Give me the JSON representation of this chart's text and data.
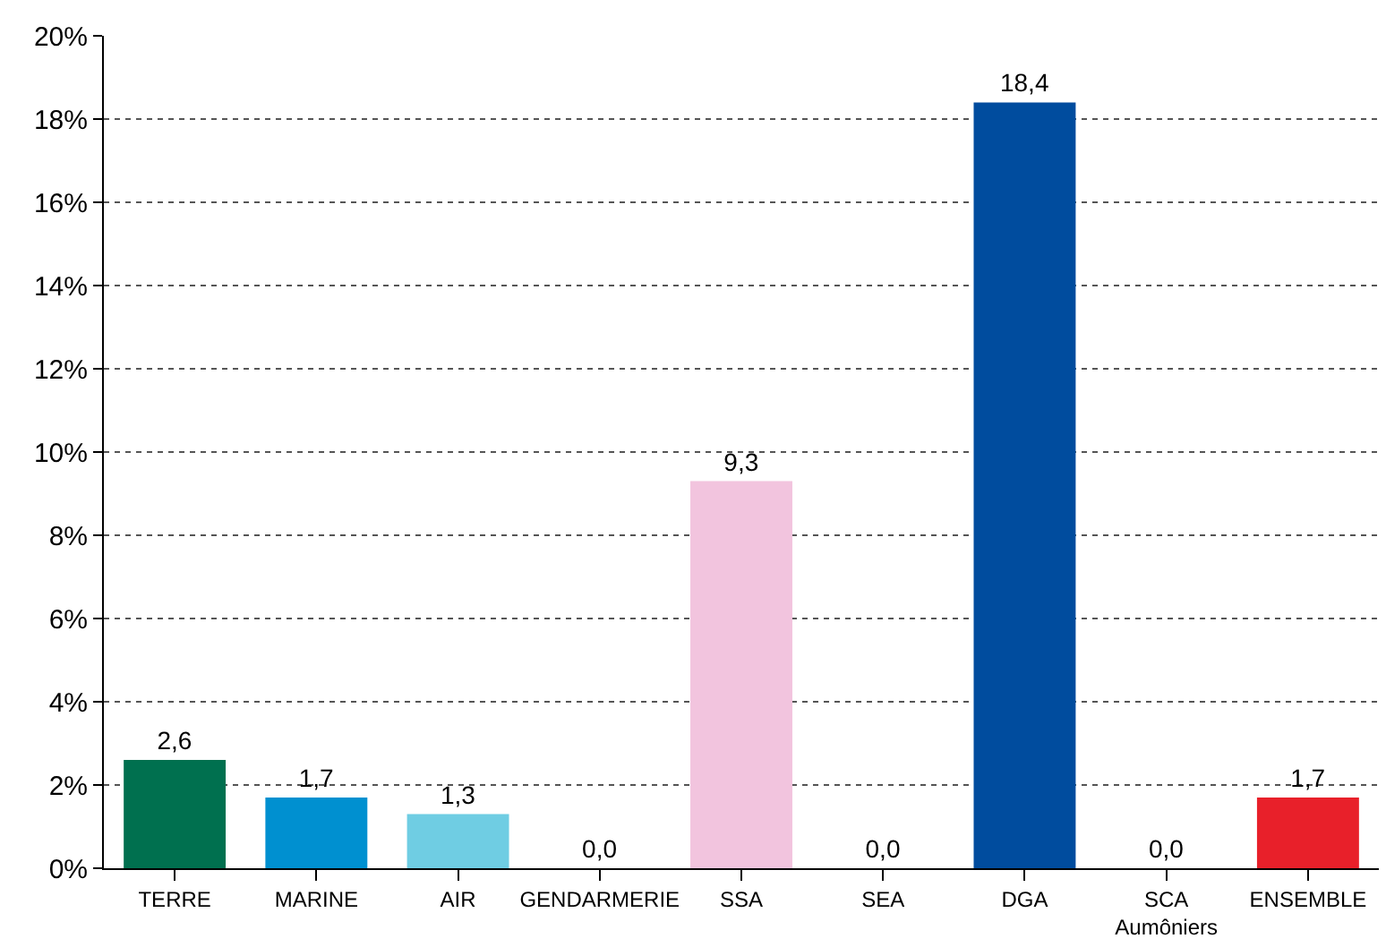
{
  "chart_data": {
    "type": "bar",
    "categories": [
      "TERRE",
      "MARINE",
      "AIR",
      "GENDARMERIE",
      "SSA",
      "SEA",
      "DGA",
      "SCA\nAumôniers",
      "ENSEMBLE"
    ],
    "values": [
      2.6,
      1.7,
      1.3,
      0.0,
      9.3,
      0.0,
      18.4,
      0.0,
      1.7
    ],
    "value_labels": [
      "2,6",
      "1,7",
      "1,3",
      "0,0",
      "9,3",
      "0,0",
      "18,4",
      "0,0",
      "1,7"
    ],
    "colors": [
      "#00704f",
      "#0090d0",
      "#6fcde3",
      "#aaaaaa",
      "#f2c4de",
      "#aaaaaa",
      "#004c9e",
      "#aaaaaa",
      "#e8202a"
    ],
    "ylim": [
      0,
      20
    ],
    "yticks": [
      {
        "value": 0,
        "label": "0%"
      },
      {
        "value": 2,
        "label": "2%"
      },
      {
        "value": 4,
        "label": "4%"
      },
      {
        "value": 6,
        "label": "6%"
      },
      {
        "value": 8,
        "label": "8%"
      },
      {
        "value": 10,
        "label": "10%"
      },
      {
        "value": 12,
        "label": "12%"
      },
      {
        "value": 14,
        "label": "14%"
      },
      {
        "value": 16,
        "label": "16%"
      },
      {
        "value": 18,
        "label": "18%"
      },
      {
        "value": 20,
        "label": "20%"
      }
    ],
    "grid": "y",
    "legend": false
  }
}
